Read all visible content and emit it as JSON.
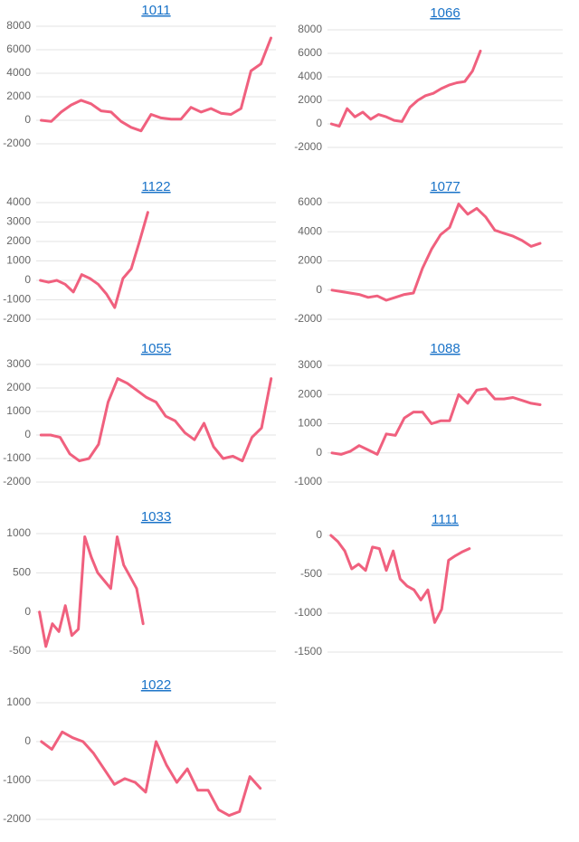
{
  "chart_data": [
    {
      "type": "line",
      "title": "1011",
      "color": "#f0607e",
      "ylim": [
        -2000,
        8000
      ],
      "yticks": [
        -2000,
        0,
        2000,
        4000,
        6000,
        8000
      ],
      "grid": true,
      "categories": [
        null,
        null,
        null,
        null,
        null,
        null,
        null,
        null,
        null,
        null,
        null,
        null,
        null,
        null,
        null,
        null,
        null,
        null,
        null,
        null,
        null,
        null,
        null,
        null
      ],
      "values": [
        0,
        -100,
        700,
        1300,
        1700,
        1400,
        800,
        700,
        -100,
        -600,
        -900,
        500,
        200,
        100,
        100,
        1100,
        700,
        1000,
        600,
        500,
        1000,
        4200,
        4800,
        7000
      ]
    },
    {
      "type": "line",
      "title": "1066",
      "color": "#f0607e",
      "ylim": [
        -2000,
        8000
      ],
      "yticks": [
        -2000,
        0,
        2000,
        4000,
        6000,
        8000
      ],
      "grid": true,
      "categories": [
        null,
        null,
        null,
        null,
        null,
        null,
        null,
        null,
        null,
        null,
        null,
        null,
        null,
        null,
        null,
        null,
        null,
        null,
        null,
        null,
        null,
        null,
        null,
        null,
        null,
        null,
        null,
        null,
        null,
        null
      ],
      "values": [
        0,
        -200,
        1300,
        600,
        1000,
        400,
        800,
        600,
        300,
        200,
        1400,
        2000,
        2400,
        2600,
        3000,
        3300,
        3500,
        3600,
        4500,
        6200,
        null,
        null,
        null,
        null,
        null,
        null,
        null,
        null,
        null,
        null
      ]
    },
    {
      "type": "line",
      "title": "1122",
      "color": "#f0607e",
      "ylim": [
        -2000,
        4000
      ],
      "yticks": [
        -2000,
        -1000,
        0,
        1000,
        2000,
        3000,
        4000
      ],
      "grid": true,
      "categories": [
        null,
        null,
        null,
        null,
        null,
        null,
        null,
        null,
        null,
        null,
        null,
        null,
        null,
        null,
        null,
        null,
        null,
        null,
        null,
        null,
        null,
        null,
        null,
        null,
        null,
        null,
        null,
        null,
        null
      ],
      "values": [
        0,
        -100,
        0,
        -200,
        -600,
        300,
        100,
        -200,
        -700,
        -1400,
        100,
        600,
        2000,
        3500,
        null,
        null,
        null,
        null,
        null,
        null,
        null,
        null,
        null,
        null,
        null,
        null,
        null,
        null,
        null
      ]
    },
    {
      "type": "line",
      "title": "1077",
      "color": "#f0607e",
      "ylim": [
        -2000,
        6000
      ],
      "yticks": [
        -2000,
        0,
        2000,
        4000,
        6000
      ],
      "grid": true,
      "categories": [
        null,
        null,
        null,
        null,
        null,
        null,
        null,
        null,
        null,
        null,
        null,
        null,
        null,
        null,
        null,
        null,
        null,
        null,
        null,
        null,
        null,
        null,
        null,
        null,
        null,
        null
      ],
      "values": [
        0,
        -100,
        -200,
        -300,
        -500,
        -400,
        -700,
        -500,
        -300,
        -200,
        1500,
        2800,
        3800,
        4300,
        5900,
        5200,
        5600,
        5000,
        4100,
        3900,
        3700,
        3400,
        3000,
        3200,
        null,
        null
      ]
    },
    {
      "type": "line",
      "title": "1055",
      "color": "#f0607e",
      "ylim": [
        -2000,
        3000
      ],
      "yticks": [
        -2000,
        -1000,
        0,
        1000,
        2000,
        3000
      ],
      "grid": true,
      "categories": [
        null,
        null,
        null,
        null,
        null,
        null,
        null,
        null,
        null,
        null,
        null,
        null,
        null,
        null,
        null,
        null,
        null,
        null,
        null,
        null,
        null,
        null,
        null,
        null,
        null
      ],
      "values": [
        0,
        0,
        -100,
        -800,
        -1100,
        -1000,
        -400,
        1400,
        2400,
        2200,
        1900,
        1600,
        1400,
        800,
        600,
        100,
        -200,
        500,
        -500,
        -1000,
        -900,
        -1100,
        -100,
        300,
        2400
      ]
    },
    {
      "type": "line",
      "title": "1088",
      "color": "#f0607e",
      "ylim": [
        -1000,
        3000
      ],
      "yticks": [
        -1000,
        0,
        1000,
        2000,
        3000
      ],
      "grid": true,
      "categories": [
        null,
        null,
        null,
        null,
        null,
        null,
        null,
        null,
        null,
        null,
        null,
        null,
        null,
        null,
        null,
        null,
        null,
        null,
        null,
        null,
        null,
        null,
        null,
        null,
        null,
        null
      ],
      "values": [
        0,
        -50,
        50,
        250,
        100,
        -50,
        650,
        600,
        1200,
        1400,
        1400,
        1000,
        1100,
        1100,
        2000,
        1700,
        2150,
        2200,
        1850,
        1850,
        1900,
        1800,
        1700,
        1650,
        null,
        null
      ]
    },
    {
      "type": "line",
      "title": "1033",
      "color": "#f0607e",
      "ylim": [
        -500,
        1000
      ],
      "yticks": [
        -500,
        0,
        500,
        1000
      ],
      "grid": true,
      "categories": [
        null,
        null,
        null,
        null,
        null,
        null,
        null,
        null,
        null,
        null,
        null,
        null,
        null,
        null,
        null,
        null,
        null,
        null,
        null,
        null,
        null,
        null,
        null,
        null,
        null,
        null,
        null,
        null,
        null,
        null,
        null,
        null,
        null,
        null,
        null,
        null,
        null
      ],
      "values": [
        0,
        -440,
        -150,
        -250,
        80,
        -300,
        -220,
        960,
        700,
        500,
        400,
        300,
        960,
        600,
        450,
        300,
        -150,
        null,
        null,
        null,
        null,
        null,
        null,
        null,
        null,
        null,
        null,
        null,
        null,
        null,
        null,
        null,
        null,
        null,
        null,
        null,
        null
      ]
    },
    {
      "type": "line",
      "title": "1111",
      "color": "#f0607e",
      "ylim": [
        -1500,
        0
      ],
      "yticks": [
        -1500,
        -1000,
        -500,
        0
      ],
      "grid": true,
      "categories": [
        null,
        null,
        null,
        null,
        null,
        null,
        null,
        null,
        null,
        null,
        null,
        null,
        null,
        null,
        null,
        null,
        null,
        null,
        null,
        null,
        null,
        null,
        null,
        null,
        null,
        null,
        null,
        null,
        null,
        null,
        null,
        null,
        null,
        null
      ],
      "values": [
        0,
        -80,
        -200,
        -430,
        -370,
        -450,
        -150,
        -170,
        -450,
        -200,
        -560,
        -650,
        -700,
        -830,
        -700,
        -1120,
        -950,
        -320,
        -260,
        -210,
        -170,
        null,
        null,
        null,
        null,
        null,
        null,
        null,
        null,
        null,
        null,
        null,
        null,
        null
      ]
    },
    {
      "type": "line",
      "title": "1022",
      "color": "#f0607e",
      "ylim": [
        -2000,
        1000
      ],
      "yticks": [
        -2000,
        -1000,
        0,
        1000
      ],
      "grid": true,
      "categories": [
        null,
        null,
        null,
        null,
        null,
        null,
        null,
        null,
        null,
        null,
        null,
        null,
        null,
        null,
        null,
        null,
        null,
        null,
        null,
        null,
        null,
        null,
        null
      ],
      "values": [
        0,
        -200,
        250,
        100,
        0,
        -300,
        -700,
        -1100,
        -950,
        -1050,
        -1300,
        0,
        -600,
        -1050,
        -700,
        -1250,
        -1250,
        -1750,
        -1900,
        -1800,
        -900,
        -1200,
        null
      ]
    }
  ]
}
